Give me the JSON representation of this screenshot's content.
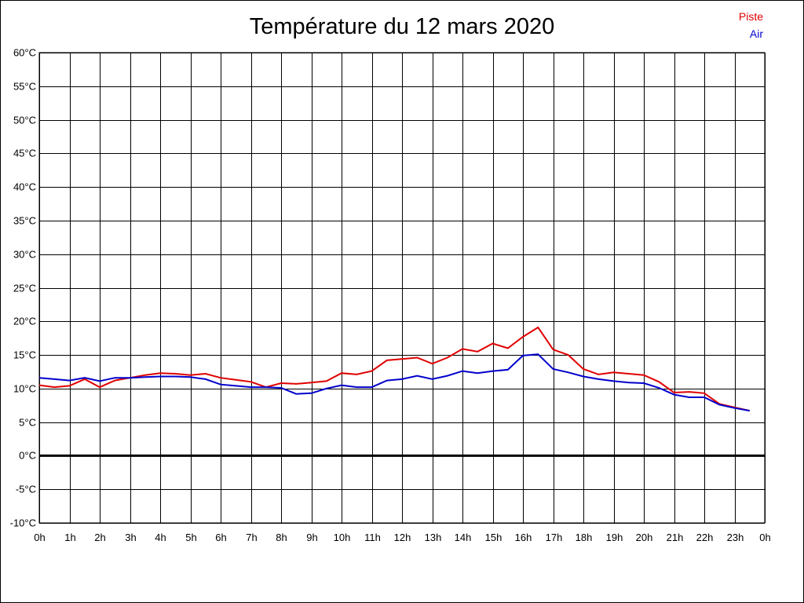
{
  "chart_data": {
    "type": "line",
    "title": "Température du 12 mars 2020",
    "xlabel": "",
    "ylabel": "",
    "ylim": [
      -10,
      60
    ],
    "xlim": [
      0,
      24
    ],
    "grid": true,
    "legend_position": "top-right",
    "y_ticks": [
      "-10°C",
      "-5°C",
      "0°C",
      "5°C",
      "10°C",
      "15°C",
      "20°C",
      "25°C",
      "30°C",
      "35°C",
      "40°C",
      "45°C",
      "50°C",
      "55°C",
      "60°C"
    ],
    "x_ticks": [
      "0h",
      "1h",
      "2h",
      "3h",
      "4h",
      "5h",
      "6h",
      "7h",
      "8h",
      "9h",
      "10h",
      "11h",
      "12h",
      "13h",
      "14h",
      "15h",
      "16h",
      "17h",
      "18h",
      "19h",
      "20h",
      "21h",
      "22h",
      "23h",
      "0h"
    ],
    "x": [
      0,
      0.5,
      1,
      1.5,
      2,
      2.5,
      3,
      3.5,
      4,
      4.5,
      5,
      5.5,
      6,
      6.5,
      7,
      7.5,
      8,
      8.5,
      9,
      9.5,
      10,
      10.5,
      11,
      11.5,
      12,
      12.5,
      13,
      13.5,
      14,
      14.5,
      15,
      15.5,
      16,
      16.5,
      17,
      17.5,
      18,
      18.5,
      19,
      19.5,
      20,
      20.5,
      21,
      21.5,
      22,
      22.5,
      23,
      23.5
    ],
    "series": [
      {
        "name": "Piste",
        "color": "#e00000",
        "values": [
          10.5,
          10.2,
          10.4,
          11.4,
          10.2,
          11.2,
          11.6,
          12.0,
          12.3,
          12.2,
          12.0,
          12.2,
          11.6,
          11.3,
          11.0,
          10.2,
          10.8,
          10.7,
          10.9,
          11.1,
          12.3,
          12.1,
          12.6,
          14.2,
          14.4,
          14.6,
          13.7,
          14.6,
          15.9,
          15.5,
          16.7,
          16.0,
          17.7,
          19.1,
          15.8,
          15.0,
          12.9,
          12.1,
          12.4,
          12.2,
          12.0,
          11.0,
          9.4,
          9.5,
          9.3,
          7.7,
          7.2,
          6.7
        ]
      },
      {
        "name": "Air",
        "color": "#0000cc",
        "values": [
          11.6,
          11.4,
          11.2,
          11.6,
          11.1,
          11.6,
          11.6,
          11.7,
          11.8,
          11.8,
          11.7,
          11.4,
          10.6,
          10.4,
          10.2,
          10.2,
          10.1,
          9.2,
          9.3,
          10.0,
          10.5,
          10.2,
          10.2,
          11.2,
          11.4,
          11.9,
          11.4,
          11.9,
          12.6,
          12.3,
          12.6,
          12.8,
          14.9,
          15.1,
          12.9,
          12.4,
          11.8,
          11.4,
          11.1,
          10.9,
          10.8,
          10.1,
          9.1,
          8.7,
          8.7,
          7.6,
          7.1,
          6.7
        ]
      }
    ]
  }
}
